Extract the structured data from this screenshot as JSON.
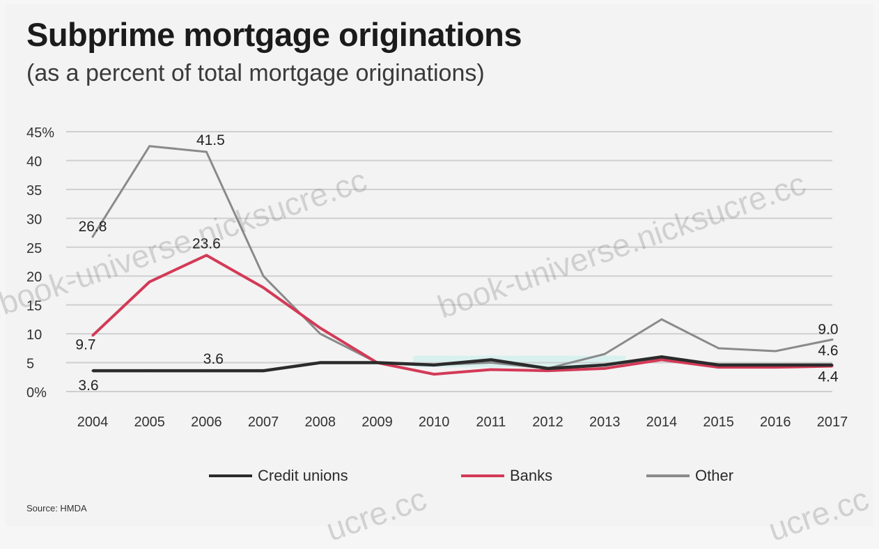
{
  "title": "Subprime mortgage originations",
  "subtitle": "(as a percent of total mortgage originations)",
  "source": "Source: HMDA",
  "watermarks": [
    "book-universe.nicksucre.cc",
    "book-universe.nicksucre.cc",
    "ucre.cc",
    "ucre.cc"
  ],
  "colors": {
    "credit_unions": "#2b2b2b",
    "banks": "#d33a57",
    "other": "#8a8a8a",
    "gridline": "#cfcfcf",
    "highlight": "#b8f0ea"
  },
  "chart_data": {
    "type": "line",
    "x": [
      "2004",
      "2005",
      "2006",
      "2007",
      "2008",
      "2009",
      "2010",
      "2011",
      "2012",
      "2013",
      "2014",
      "2015",
      "2016",
      "2017"
    ],
    "ylim": [
      0,
      45
    ],
    "yticks": [
      "0%",
      "5",
      "10",
      "15",
      "20",
      "25",
      "30",
      "35",
      "40",
      "45%"
    ],
    "grid": true,
    "legend_position": "bottom",
    "series": [
      {
        "key": "credit_unions",
        "name": "Credit unions",
        "values": [
          3.6,
          3.6,
          3.6,
          3.6,
          5.0,
          5.0,
          4.6,
          5.5,
          4.0,
          4.6,
          6.0,
          4.6,
          4.6,
          4.6
        ]
      },
      {
        "key": "banks",
        "name": "Banks",
        "values": [
          9.7,
          19.0,
          23.6,
          18.0,
          11.0,
          5.0,
          3.0,
          3.8,
          3.6,
          4.0,
          5.5,
          4.2,
          4.2,
          4.4
        ]
      },
      {
        "key": "other",
        "name": "Other",
        "values": [
          26.8,
          42.5,
          41.5,
          20.0,
          10.0,
          5.0,
          4.6,
          5.0,
          4.0,
          6.5,
          12.5,
          7.5,
          7.0,
          9.0
        ]
      }
    ],
    "annotations": [
      {
        "series": "other",
        "x": "2004",
        "label": "26.8"
      },
      {
        "series": "other",
        "x": "2006",
        "label": "41.5"
      },
      {
        "series": "banks",
        "x": "2006",
        "label": "23.6"
      },
      {
        "series": "banks",
        "x": "2004",
        "label": "9.7"
      },
      {
        "series": "credit_unions",
        "x": "2006",
        "label": "3.6"
      },
      {
        "series": "credit_unions",
        "x": "2004",
        "label": "3.6"
      },
      {
        "series": "other",
        "x": "2017",
        "label": "9.0"
      },
      {
        "series": "credit_unions",
        "x": "2017",
        "label": "4.6"
      },
      {
        "series": "banks",
        "x": "2017",
        "label": "4.4"
      }
    ]
  }
}
